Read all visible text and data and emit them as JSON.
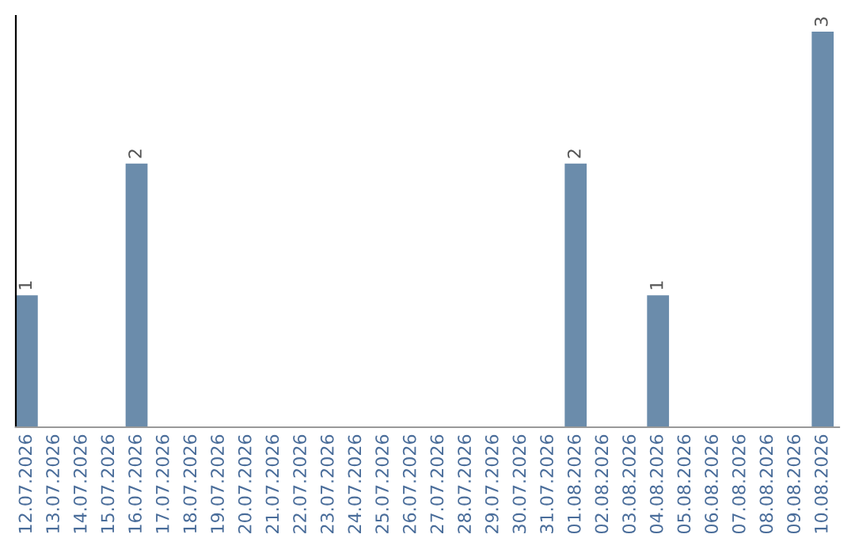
{
  "chart_data": {
    "type": "bar",
    "categories": [
      "12.07.2026",
      "13.07.2026",
      "14.07.2026",
      "15.07.2026",
      "16.07.2026",
      "17.07.2026",
      "18.07.2026",
      "19.07.2026",
      "20.07.2026",
      "21.07.2026",
      "22.07.2026",
      "23.07.2026",
      "24.07.2026",
      "25.07.2026",
      "26.07.2026",
      "27.07.2026",
      "28.07.2026",
      "29.07.2026",
      "30.07.2026",
      "31.07.2026",
      "01.08.2026",
      "02.08.2026",
      "03.08.2026",
      "04.08.2026",
      "05.08.2026",
      "06.08.2026",
      "07.08.2026",
      "08.08.2026",
      "09.08.2026",
      "10.08.2026"
    ],
    "values": [
      1,
      0,
      0,
      0,
      2,
      0,
      0,
      0,
      0,
      0,
      0,
      0,
      0,
      0,
      0,
      0,
      0,
      0,
      0,
      0,
      2,
      0,
      0,
      1,
      0,
      0,
      0,
      0,
      0,
      3
    ],
    "value_labels": [
      "1",
      null,
      null,
      null,
      "2",
      null,
      null,
      null,
      null,
      null,
      null,
      null,
      null,
      null,
      null,
      null,
      null,
      null,
      null,
      null,
      "2",
      null,
      null,
      "1",
      null,
      null,
      null,
      null,
      null,
      "3"
    ],
    "color": "#6b8cab",
    "tick_labels": "x",
    "grid": false,
    "legend": false
  }
}
